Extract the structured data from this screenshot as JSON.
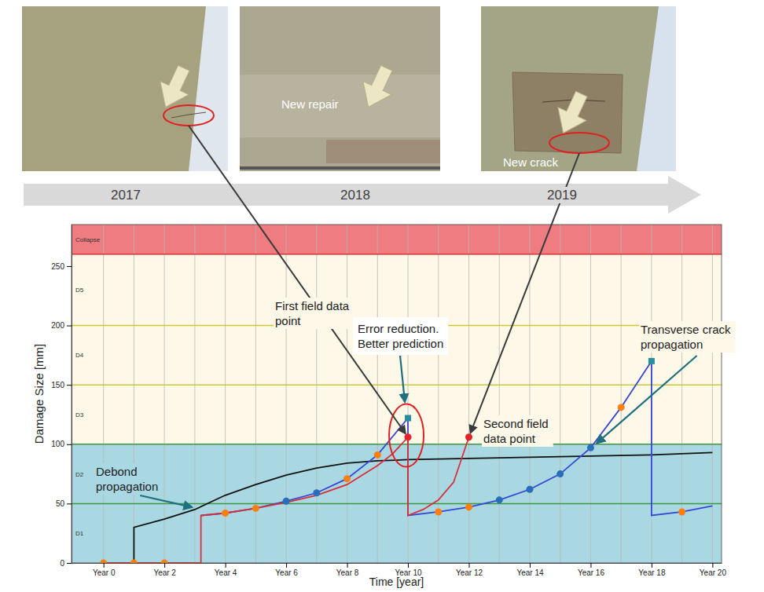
{
  "timeline": [
    "2017",
    "2018",
    "2019"
  ],
  "photo_captions": [
    "New repair",
    "New crack"
  ],
  "chart_data": {
    "type": "line",
    "x_label": "Time [year]",
    "y_label": "Damage Size [mm]",
    "xlim": [
      -1.05,
      20.3
    ],
    "xticks": [
      {
        "value": 0,
        "label": "Year 0"
      },
      {
        "value": 2,
        "label": "Year 2"
      },
      {
        "value": 4,
        "label": "Year 4"
      },
      {
        "value": 6,
        "label": "Year 6"
      },
      {
        "value": 8,
        "label": "Year 8"
      },
      {
        "value": 10,
        "label": "Year 10"
      },
      {
        "value": 12,
        "label": "Year 12"
      },
      {
        "value": 14,
        "label": "Year 14"
      },
      {
        "value": 16,
        "label": "Year 16"
      },
      {
        "value": 18,
        "label": "Year 18"
      },
      {
        "value": 20,
        "label": "Year 20"
      }
    ],
    "xticks_minor": [
      1,
      3,
      5,
      7,
      9,
      11,
      13,
      15,
      17,
      19
    ],
    "ylim": [
      0,
      285
    ],
    "yticks": [
      0,
      50,
      100,
      150,
      200,
      250
    ],
    "grid": "x",
    "bands": [
      {
        "label": "D1",
        "from": 0,
        "to": 50,
        "color": "#a9d8e3"
      },
      {
        "label": "D2",
        "from": 50,
        "to": 100,
        "color": "#a9d8e3"
      },
      {
        "label": "D3",
        "from": 100,
        "to": 150,
        "color": "#fdf8e7"
      },
      {
        "label": "D4",
        "from": 150,
        "to": 200,
        "color": "#fdf8e7"
      },
      {
        "label": "D5",
        "from": 200,
        "to": 260,
        "color": "#fdf8e7"
      },
      {
        "label": "Collapse",
        "from": 260,
        "to": 285,
        "color": "#ef7c80"
      }
    ],
    "thresholds": [
      {
        "value": 50,
        "color": "#3c9a3c"
      },
      {
        "value": 100,
        "color": "#3c9a3c"
      },
      {
        "value": 150,
        "color": "#c9c93a"
      },
      {
        "value": 200,
        "color": "#c9c93a"
      },
      {
        "value": 260,
        "color": "#e03030"
      }
    ],
    "series": [
      {
        "type": "line",
        "color": "#111111",
        "line_style": "solid",
        "marker": "none",
        "x": [
          0,
          1,
          1,
          2,
          3,
          4,
          5,
          6,
          7,
          8,
          9,
          10,
          12,
          14,
          16,
          18,
          20
        ],
        "values": [
          0,
          0,
          30,
          37,
          45,
          57,
          66,
          74,
          80,
          84,
          86,
          87,
          88,
          89,
          90,
          91,
          93
        ]
      },
      {
        "type": "line",
        "color": "#3646d6",
        "line_style": "solid",
        "marker": "none",
        "x": [
          3.2,
          4,
          5,
          6,
          7,
          8,
          9,
          10,
          10,
          11,
          12,
          13,
          14,
          15,
          16,
          17,
          18,
          18,
          19,
          20
        ],
        "values": [
          40,
          42,
          46,
          52,
          59,
          71,
          91,
          122,
          40,
          43,
          47,
          53,
          62,
          75,
          97,
          131,
          170,
          40,
          43,
          48
        ]
      },
      {
        "type": "line",
        "color": "#d62f3a",
        "line_style": "solid",
        "marker": "none",
        "x": [
          0,
          3.2,
          3.2,
          4,
          5,
          6,
          7,
          8,
          9,
          9.5,
          10,
          10,
          10.5,
          11,
          11.5,
          12
        ],
        "values": [
          0,
          0,
          40,
          42,
          46,
          51,
          57,
          66,
          82,
          92,
          106,
          40,
          45,
          53,
          68,
          106
        ]
      },
      {
        "type": "scatter",
        "color": "#ff7f0e",
        "marker": "circle",
        "x": [
          0,
          1,
          2,
          4,
          5,
          8,
          9,
          11,
          12,
          17,
          19
        ],
        "values": [
          0,
          0,
          0,
          42,
          46,
          71,
          91,
          43,
          47,
          131,
          43
        ]
      },
      {
        "type": "scatter",
        "color": "#2a6ebb",
        "marker": "circle",
        "x": [
          6,
          7,
          13,
          14,
          15,
          16
        ],
        "values": [
          52,
          59,
          53,
          62,
          75,
          97
        ]
      },
      {
        "type": "scatter",
        "color": "#2a8c9c",
        "marker": "square",
        "x": [
          10,
          18
        ],
        "values": [
          122,
          170
        ]
      },
      {
        "type": "scatter",
        "color": "#e8202a",
        "marker": "circle",
        "x": [
          10,
          12
        ],
        "values": [
          106,
          106
        ]
      }
    ],
    "annotations": [
      "Debond propagation",
      "First field data point",
      "Error reduction. Better prediction",
      "Second field data point",
      "Transverse crack propagation"
    ]
  }
}
